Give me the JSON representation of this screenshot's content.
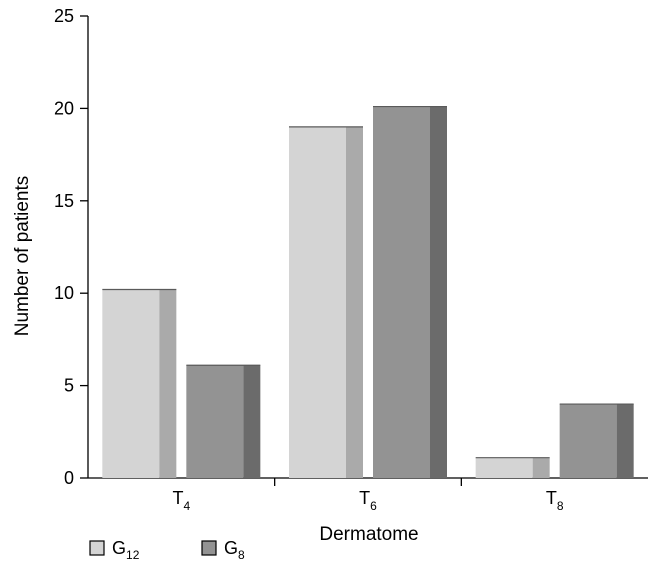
{
  "chart_data": {
    "type": "bar",
    "categories": [
      {
        "base": "T",
        "sub": "4"
      },
      {
        "base": "T",
        "sub": "6"
      },
      {
        "base": "T",
        "sub": "8"
      }
    ],
    "series": [
      {
        "name": "G12",
        "label_base": "G",
        "label_sub": "12",
        "values": [
          10.2,
          19,
          1.1
        ],
        "colors": {
          "front": "#d4d4d4",
          "side": "#aaaaaa"
        }
      },
      {
        "name": "G8",
        "label_base": "G",
        "label_sub": "8",
        "values": [
          6.1,
          20.1,
          4.0
        ],
        "colors": {
          "front": "#939393",
          "side": "#6b6b6b"
        }
      }
    ],
    "xlabel": "Dermatome",
    "ylabel": "Number of patients",
    "ylim": [
      0,
      25
    ],
    "yticks": [
      0,
      5,
      10,
      15,
      20,
      25
    ],
    "grid": false,
    "legend_position": "bottom-left"
  }
}
